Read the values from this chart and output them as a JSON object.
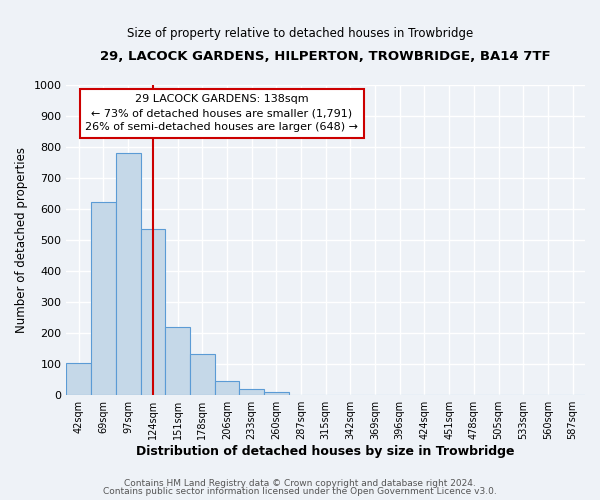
{
  "title": "29, LACOCK GARDENS, HILPERTON, TROWBRIDGE, BA14 7TF",
  "subtitle": "Size of property relative to detached houses in Trowbridge",
  "xlabel": "Distribution of detached houses by size in Trowbridge",
  "ylabel": "Number of detached properties",
  "bar_labels": [
    "42sqm",
    "69sqm",
    "97sqm",
    "124sqm",
    "151sqm",
    "178sqm",
    "206sqm",
    "233sqm",
    "260sqm",
    "287sqm",
    "315sqm",
    "342sqm",
    "369sqm",
    "396sqm",
    "424sqm",
    "451sqm",
    "478sqm",
    "505sqm",
    "533sqm",
    "560sqm",
    "587sqm"
  ],
  "bar_values": [
    103,
    622,
    781,
    535,
    220,
    133,
    44,
    17,
    8,
    0,
    0,
    0,
    0,
    0,
    0,
    0,
    0,
    0,
    0,
    0,
    0
  ],
  "bar_color": "#c5d8e8",
  "bar_edge_color": "#5b9bd5",
  "vline_x": 3.52,
  "vline_color": "#cc0000",
  "annotation_title": "29 LACOCK GARDENS: 138sqm",
  "annotation_line1": "← 73% of detached houses are smaller (1,791)",
  "annotation_line2": "26% of semi-detached houses are larger (648) →",
  "annotation_box_color": "#ffffff",
  "annotation_box_edge": "#cc0000",
  "ylim": [
    0,
    1000
  ],
  "yticks": [
    0,
    100,
    200,
    300,
    400,
    500,
    600,
    700,
    800,
    900,
    1000
  ],
  "footer1": "Contains HM Land Registry data © Crown copyright and database right 2024.",
  "footer2": "Contains public sector information licensed under the Open Government Licence v3.0.",
  "background_color": "#eef2f7",
  "plot_bg_color": "#eef2f7",
  "grid_color": "#ffffff",
  "title_fontsize": 9.5,
  "subtitle_fontsize": 8.5
}
